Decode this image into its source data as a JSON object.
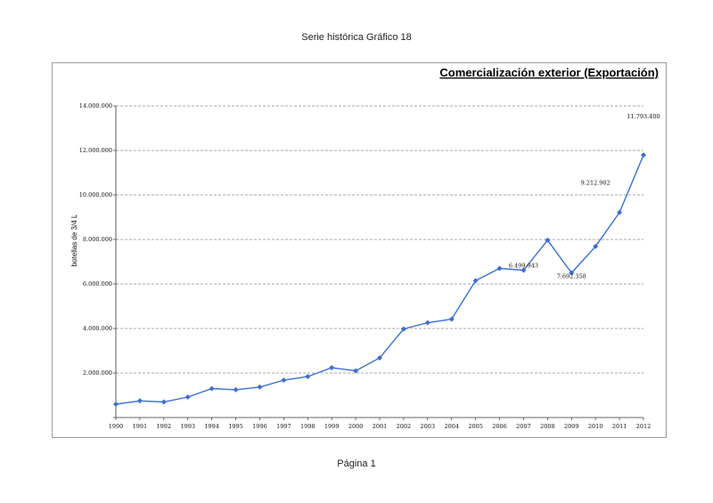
{
  "page": {
    "header": "Serie histórica Gráfico 18",
    "footer": "Página 1"
  },
  "chart_data": {
    "type": "line",
    "title": "Comercialización exterior (Exportación)",
    "xlabel": "",
    "ylabel": "botellas de 3/4 L",
    "ylim": [
      0,
      14000000
    ],
    "yticks": [
      {
        "value": 0,
        "label": ""
      },
      {
        "value": 2000000,
        "label": "2.000.000"
      },
      {
        "value": 4000000,
        "label": "4.000.000"
      },
      {
        "value": 6000000,
        "label": "6.000.000"
      },
      {
        "value": 8000000,
        "label": "8.000.000"
      },
      {
        "value": 10000000,
        "label": "10.000.000"
      },
      {
        "value": 12000000,
        "label": "12.000.000"
      },
      {
        "value": 14000000,
        "label": "14.000.000"
      }
    ],
    "grid": true,
    "legend": "none",
    "line_color": "#3b6fd4",
    "categories": [
      "1990",
      "1991",
      "1992",
      "1993",
      "1994",
      "1995",
      "1996",
      "1997",
      "1998",
      "1999",
      "2000",
      "2001",
      "2002",
      "2003",
      "2004",
      "2005",
      "2006",
      "2007",
      "2008",
      "2009",
      "2010",
      "2011",
      "2012"
    ],
    "series": [
      {
        "name": "",
        "values": [
          600000,
          750000,
          700000,
          920000,
          1300000,
          1250000,
          1370000,
          1680000,
          1840000,
          2240000,
          2100000,
          2680000,
          3980000,
          4260000,
          4420000,
          6150000,
          6700000,
          6620000,
          7970000,
          6500000,
          7690000,
          9212902,
          11793400
        ]
      }
    ],
    "annotations": [
      {
        "text": "11.793.400",
        "year": "2012",
        "value": 13450000
      },
      {
        "text": "9.212.902",
        "year": "2010",
        "value": 10470000
      },
      {
        "text": "6.499.943",
        "year": "2007",
        "value": 6750000
      },
      {
        "text": "7.692.358",
        "year": "2009",
        "value": 6270000
      }
    ]
  }
}
